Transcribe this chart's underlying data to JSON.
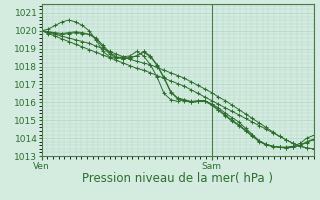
{
  "background_color": "#d4ece0",
  "grid_color": "#b0d8c4",
  "line_color": "#2d6e2d",
  "spine_color": "#4a7a4a",
  "ylim": [
    1013,
    1021.5
  ],
  "xlim": [
    0,
    48
  ],
  "yticks": [
    1013,
    1014,
    1015,
    1016,
    1017,
    1018,
    1019,
    1020,
    1021
  ],
  "xtick_labels": [
    "Ven",
    "Sam"
  ],
  "xtick_positions": [
    0,
    30
  ],
  "xlabel": "Pression niveau de la mer( hPa )",
  "xlabel_fontsize": 8.5,
  "tick_fontsize": 6.5,
  "vline_x": 30,
  "series": [
    [
      1020.0,
      1020.1,
      1020.3,
      1020.5,
      1020.6,
      1020.5,
      1020.3,
      1020.0,
      1019.5,
      1018.85,
      1018.55,
      1018.5,
      1018.55,
      1018.6,
      1018.85,
      1018.6,
      1018.1,
      1017.4,
      1016.5,
      1016.15,
      1016.05,
      1016.15,
      1016.0,
      1016.05,
      1016.1,
      1015.9,
      1015.7,
      1015.4,
      1015.15,
      1014.9,
      1014.55,
      1014.2,
      1013.85,
      1013.65,
      1013.55,
      1013.5,
      1013.5,
      1013.55,
      1013.7,
      1014.0,
      1014.15
    ],
    [
      1020.0,
      1019.85,
      1019.7,
      1019.55,
      1019.4,
      1019.25,
      1019.1,
      1018.95,
      1018.8,
      1018.65,
      1018.5,
      1018.35,
      1018.2,
      1018.05,
      1017.9,
      1017.8,
      1017.65,
      1017.5,
      1017.35,
      1017.2,
      1017.05,
      1016.9,
      1016.7,
      1016.5,
      1016.3,
      1016.1,
      1015.9,
      1015.7,
      1015.5,
      1015.3,
      1015.1,
      1014.9,
      1014.7,
      1014.5,
      1014.3,
      1014.1,
      1013.9,
      1013.7,
      1013.55,
      1013.45,
      1013.4
    ],
    [
      1020.0,
      1019.95,
      1019.85,
      1019.8,
      1019.85,
      1019.9,
      1019.85,
      1019.8,
      1019.6,
      1019.2,
      1018.8,
      1018.55,
      1018.45,
      1018.5,
      1018.6,
      1018.85,
      1018.6,
      1018.1,
      1017.4,
      1016.6,
      1016.25,
      1016.15,
      1016.05,
      1016.1,
      1016.1,
      1015.9,
      1015.6,
      1015.3,
      1015.0,
      1014.75,
      1014.45,
      1014.15,
      1013.85,
      1013.65,
      1013.55,
      1013.5,
      1013.45,
      1013.5,
      1013.6,
      1013.8,
      1013.95
    ],
    [
      1020.0,
      1019.9,
      1019.8,
      1019.7,
      1019.6,
      1019.5,
      1019.4,
      1019.3,
      1019.15,
      1019.0,
      1018.85,
      1018.7,
      1018.55,
      1018.4,
      1018.3,
      1018.2,
      1018.1,
      1017.95,
      1017.8,
      1017.65,
      1017.5,
      1017.35,
      1017.15,
      1016.95,
      1016.75,
      1016.55,
      1016.3,
      1016.1,
      1015.85,
      1015.6,
      1015.35,
      1015.1,
      1014.85,
      1014.6,
      1014.35,
      1014.1,
      1013.9,
      1013.7,
      1013.55,
      1013.45,
      1013.4
    ],
    [
      1020.0,
      1019.95,
      1019.9,
      1019.85,
      1019.9,
      1019.95,
      1019.9,
      1019.8,
      1019.55,
      1019.1,
      1018.7,
      1018.5,
      1018.45,
      1018.5,
      1018.6,
      1018.8,
      1018.55,
      1018.05,
      1017.35,
      1016.55,
      1016.2,
      1016.1,
      1016.0,
      1016.05,
      1016.05,
      1015.85,
      1015.55,
      1015.25,
      1014.95,
      1014.7,
      1014.4,
      1014.1,
      1013.8,
      1013.62,
      1013.52,
      1013.48,
      1013.45,
      1013.5,
      1013.6,
      1013.75,
      1013.92
    ]
  ]
}
